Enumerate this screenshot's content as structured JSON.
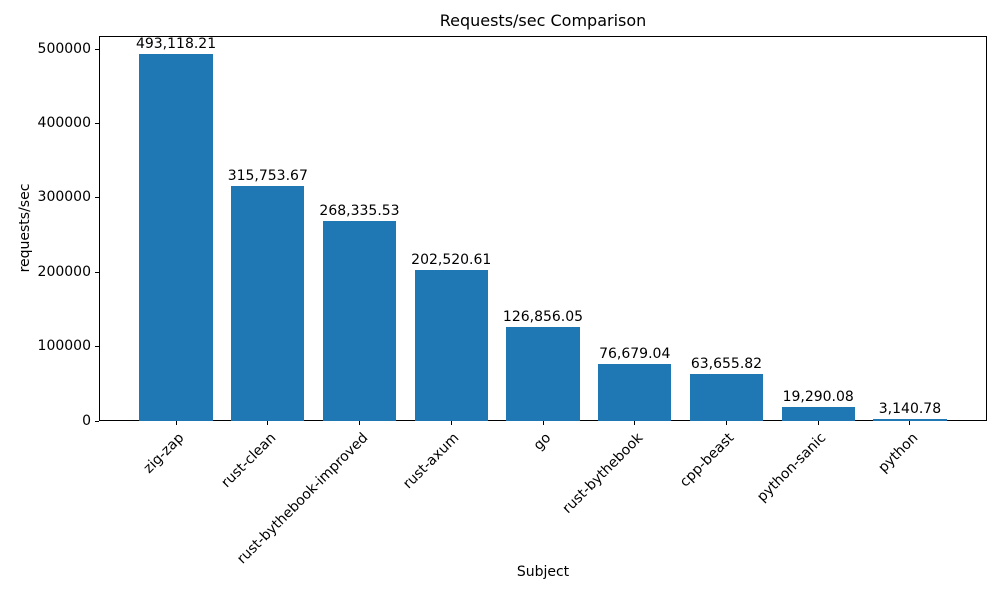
{
  "chart_data": {
    "type": "bar",
    "title": "Requests/sec Comparison",
    "xlabel": "Subject",
    "ylabel": "requests/sec",
    "categories": [
      "zig-zap",
      "rust-clean",
      "rust-bythebook-improved",
      "rust-axum",
      "go",
      "rust-bythebook",
      "cpp-beast",
      "python-sanic",
      "python"
    ],
    "values": [
      493118.21,
      315753.67,
      268335.53,
      202520.61,
      126856.05,
      76679.04,
      63655.82,
      19290.08,
      3140.78
    ],
    "bar_labels": [
      "493,118.21",
      "315,753.67",
      "268,335.53",
      "202,520.61",
      "126,856.05",
      "76,679.04",
      "63,655.82",
      "19,290.08",
      "3,140.78"
    ],
    "yticks": [
      0,
      100000,
      200000,
      300000,
      400000,
      500000
    ],
    "ytick_labels": [
      "0",
      "100000",
      "200000",
      "300000",
      "400000",
      "500000"
    ],
    "ylim": [
      0,
      517774
    ],
    "bar_color": "#1f77b4",
    "text_color": "#000000",
    "grid": false,
    "legend": null,
    "xtick_rotation_deg": 45
  }
}
